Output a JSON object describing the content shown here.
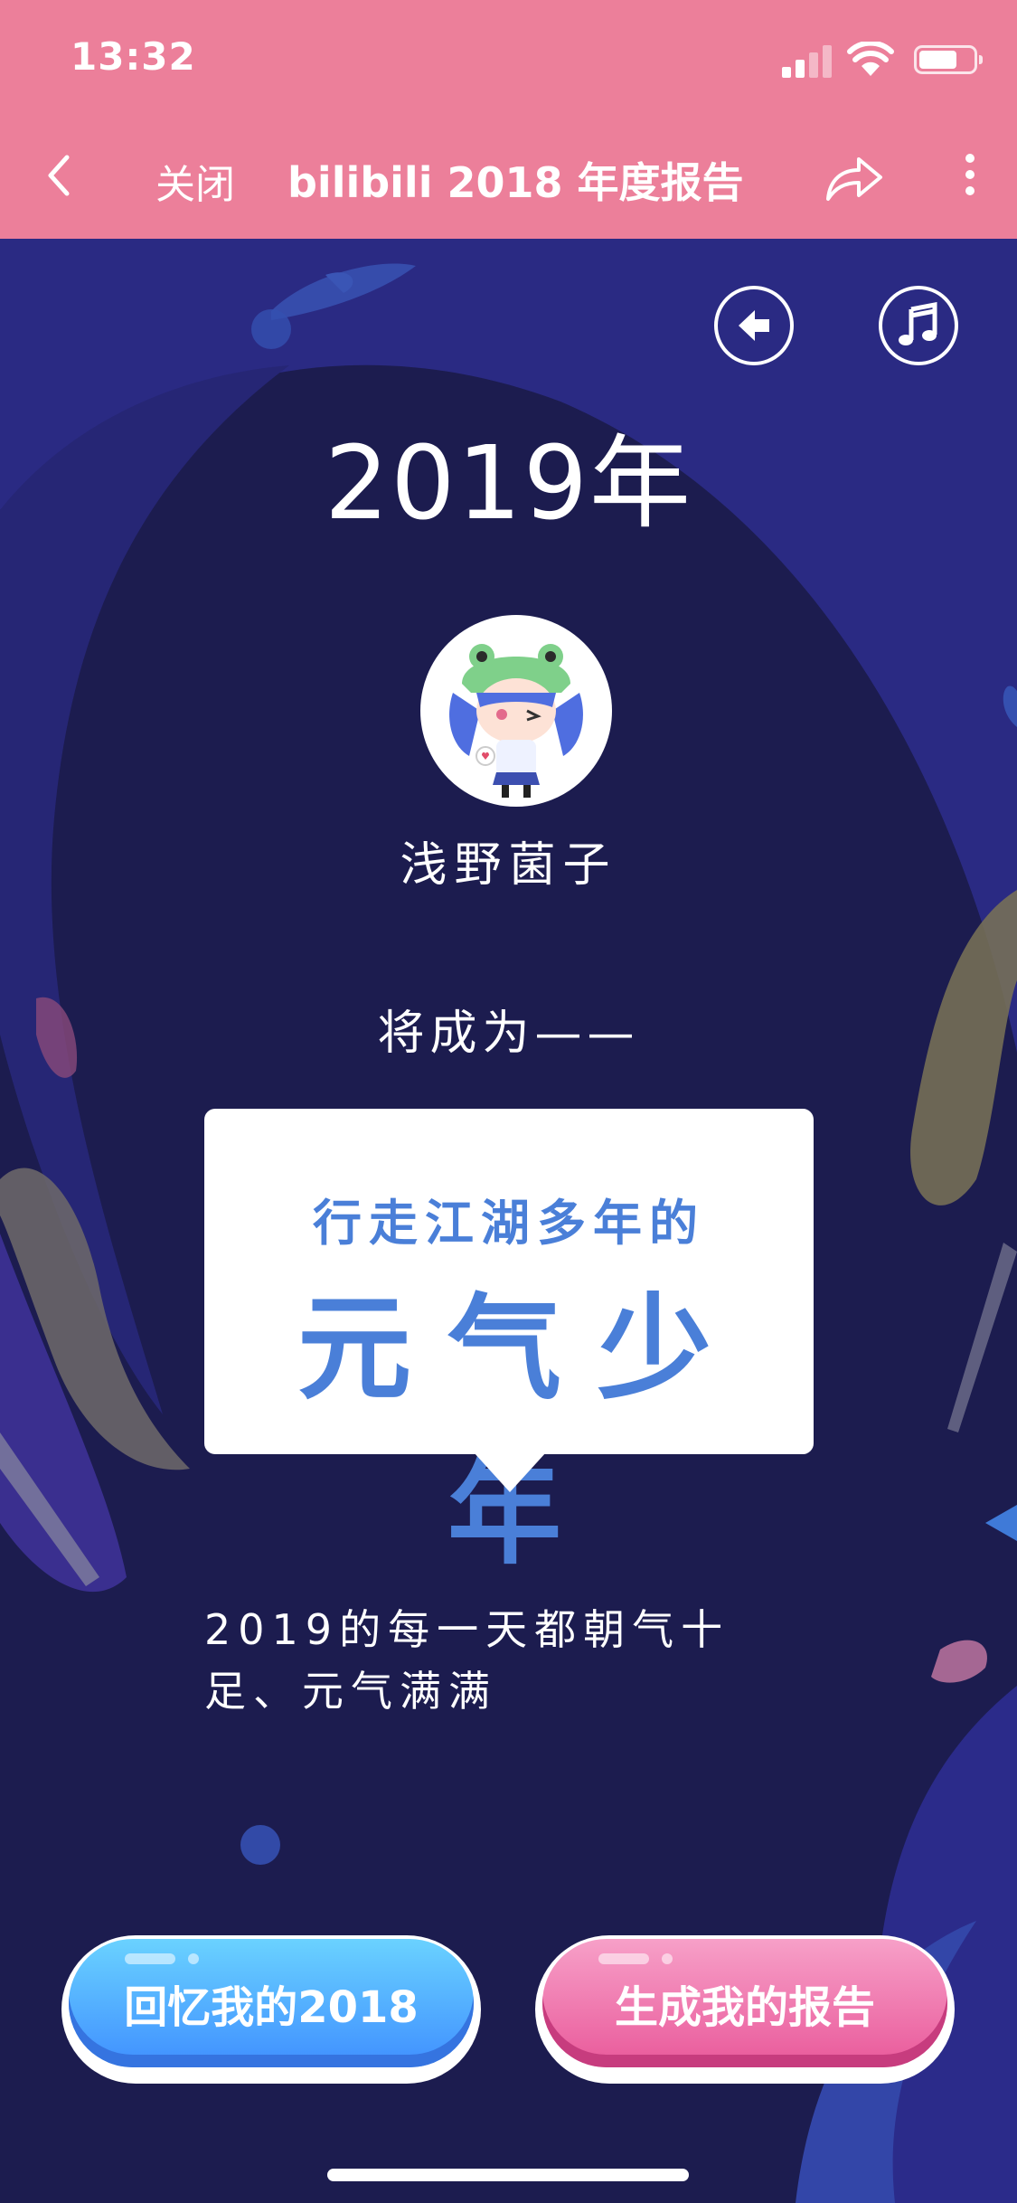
{
  "status_bar": {
    "time": "13:32",
    "battery_level": 0.7
  },
  "nav": {
    "close_label": "关闭",
    "title": "bilibili 2018 年度报告"
  },
  "report": {
    "year_title": "2019年",
    "username": "浅野菌子",
    "will_become": "将成为——",
    "title_sub": "行走江湖多年的",
    "title_main": "元气少年",
    "description_line1": "2019的每一天都朝气十",
    "description_line2": "足、元气满满"
  },
  "actions": {
    "recall_label": "回忆我的2018",
    "generate_label": "生成我的报告"
  },
  "colors": {
    "nav_bg": "#ec7f9a",
    "page_bg": "#1c1c4f",
    "title_blue": "#4a7fd8",
    "button_blue": "#3f8fff",
    "button_pink": "#e9599a"
  },
  "icons": [
    "back-chevron-icon",
    "share-icon",
    "more-icon",
    "back-arrow-icon",
    "music-note-icon"
  ]
}
